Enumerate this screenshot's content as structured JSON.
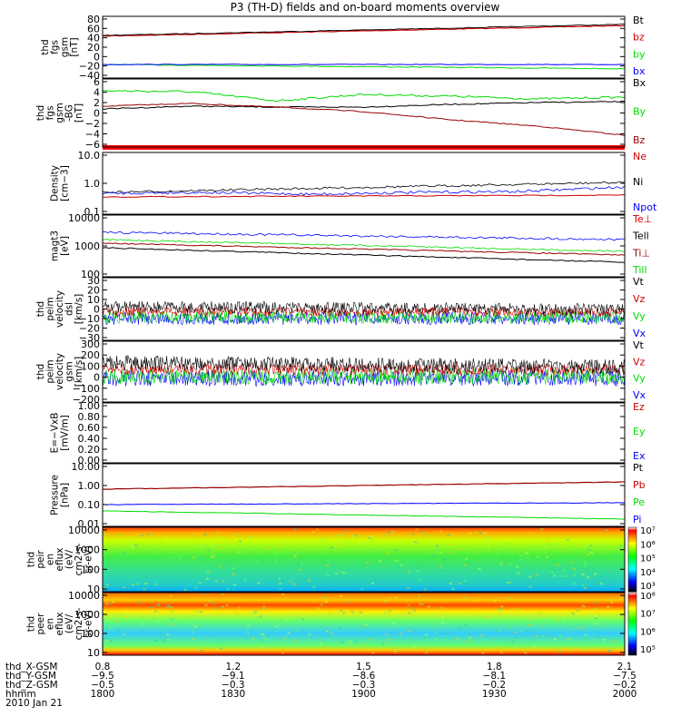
{
  "title": "P3 (TH-D) fields and on-board moments overview",
  "colors": {
    "black": "#000000",
    "red": "#cc0000",
    "green": "#00dd00",
    "blue": "#0000ff",
    "darkred": "#990000"
  },
  "panels": [
    {
      "ylabel": [
        "thd",
        "fgs",
        "gsm",
        "[nT]"
      ],
      "ticks": [
        "80",
        "60",
        "40",
        "20",
        "0",
        "−20",
        "−40"
      ],
      "legend": [
        {
          "t": "Bt",
          "c": "black"
        },
        {
          "t": "bz",
          "c": "red"
        },
        {
          "t": "by",
          "c": "green"
        },
        {
          "t": "bx",
          "c": "blue"
        }
      ]
    },
    {
      "ylabel": [
        "thd",
        "fgs",
        "gsm",
        "-BG",
        "[nT]"
      ],
      "ticks": [
        "6",
        "4",
        "2",
        "0",
        "−2",
        "−4",
        "−6"
      ],
      "legend": [
        {
          "t": "Bx",
          "c": "black"
        },
        {
          "t": "By",
          "c": "green"
        },
        {
          "t": "Bz",
          "c": "darkred"
        }
      ]
    },
    {
      "ylabel": [
        "Density",
        "[cm−3]"
      ],
      "ticks": [
        "10.0",
        "1.0",
        "0.1"
      ],
      "legend": [
        {
          "t": "Ne",
          "c": "red"
        },
        {
          "t": "Ni",
          "c": "black"
        },
        {
          "t": "Npot",
          "c": "blue"
        }
      ]
    },
    {
      "ylabel": [
        "magt3",
        "[eV]"
      ],
      "ticks": [
        "10000",
        "1000",
        "100"
      ],
      "legend": [
        {
          "t": "Te⊥",
          "c": "red"
        },
        {
          "t": "Tell",
          "c": "black"
        },
        {
          "t": "Ti⊥",
          "c": "darkred"
        },
        {
          "t": "Till",
          "c": "green"
        }
      ]
    },
    {
      "ylabel": [
        "thd",
        "peim",
        "velocity",
        "dsl",
        "[km/s]"
      ],
      "ticks": [
        "30",
        "20",
        "10",
        "0",
        "−10",
        "−20",
        "−30"
      ],
      "legend": [
        {
          "t": "Vt",
          "c": "black"
        },
        {
          "t": "Vz",
          "c": "red"
        },
        {
          "t": "Vy",
          "c": "green"
        },
        {
          "t": "Vx",
          "c": "blue"
        }
      ]
    },
    {
      "ylabel": [
        "thd",
        "peim",
        "velocity",
        "gsm",
        "[km/s]"
      ],
      "ticks": [
        "300",
        "200",
        "100",
        "0",
        "−100",
        "−200"
      ],
      "legend": [
        {
          "t": "Vt",
          "c": "black"
        },
        {
          "t": "Vz",
          "c": "red"
        },
        {
          "t": "Vy",
          "c": "green"
        },
        {
          "t": "Vx",
          "c": "blue"
        }
      ]
    },
    {
      "ylabel": [
        "E=−VxB",
        "[mV/m]"
      ],
      "ticks": [
        "1.00",
        "0.80",
        "0.60",
        "0.40",
        "0.20",
        "0.00"
      ],
      "legend": [
        {
          "t": "Ez",
          "c": "red"
        },
        {
          "t": "Ey",
          "c": "green"
        },
        {
          "t": "Ex",
          "c": "blue"
        }
      ]
    },
    {
      "ylabel": [
        "Pressure",
        "[nPa]"
      ],
      "ticks": [
        "10.00",
        "1.00",
        "0.10",
        "0.01"
      ],
      "legend": [
        {
          "t": "Pt",
          "c": "black"
        },
        {
          "t": "Pb",
          "c": "red"
        },
        {
          "t": "Pe",
          "c": "green"
        },
        {
          "t": "Pi",
          "c": "blue"
        }
      ]
    },
    {
      "ylabel": [
        "thd",
        "peir",
        "en",
        "eflux",
        "(eV/",
        "cm2-s-",
        "sr-eV)"
      ],
      "ticks": [
        "10000",
        "1000",
        "100",
        "10"
      ],
      "colorbar": [
        "10⁷",
        "10⁶",
        "10⁵",
        "10⁴",
        "10³"
      ]
    },
    {
      "ylabel": [
        "thd",
        "peer",
        "en",
        "eflux",
        "(eV/",
        "cm2-s-",
        "sr-eV)"
      ],
      "ticks": [
        "10000",
        "1000",
        "100",
        "10"
      ],
      "colorbar": [
        "10⁸",
        "10⁷",
        "10⁶",
        "10⁵"
      ]
    }
  ],
  "xaxis": {
    "rows": [
      {
        "label": "thd_X-GSM",
        "values": [
          "0.8",
          "1.2",
          "1.5",
          "1.8",
          "2.1"
        ]
      },
      {
        "label": "thd_Y-GSM",
        "values": [
          "−9.5",
          "−9.1",
          "−8.6",
          "−8.1",
          "−7.5"
        ]
      },
      {
        "label": "thd_Z-GSM",
        "values": [
          "−0.5",
          "−0.3",
          "−0.3",
          "−0.2",
          "−0.2"
        ]
      },
      {
        "label": "hhmm",
        "values": [
          "1800",
          "1830",
          "1900",
          "1930",
          "2000"
        ]
      }
    ],
    "date": "2010 Jan 21"
  },
  "chart_data": {
    "type": "line",
    "title": "P3 (TH-D) fields and on-board moments overview",
    "x_time_hhmm": [
      "1800",
      "1830",
      "1900",
      "1930",
      "2000"
    ],
    "series": [
      {
        "panel": 0,
        "name": "Bt",
        "approx_values": [
          42,
          46,
          52,
          57,
          63
        ]
      },
      {
        "panel": 0,
        "name": "bz",
        "approx_values": [
          41,
          45,
          51,
          56,
          62
        ]
      },
      {
        "panel": 0,
        "name": "by",
        "approx_values": [
          -12,
          -14,
          -17,
          -20,
          -24
        ]
      },
      {
        "panel": 0,
        "name": "bx",
        "approx_values": [
          -12,
          -12,
          -13,
          -13,
          -13
        ]
      },
      {
        "panel": 1,
        "name": "Bx",
        "approx_values": [
          0,
          0.3,
          0.5,
          1.2,
          1.5
        ]
      },
      {
        "panel": 1,
        "name": "By",
        "approx_values": [
          4,
          3.5,
          2.5,
          2.8,
          2.2
        ]
      },
      {
        "panel": 1,
        "name": "Bz",
        "approx_values": [
          1,
          0.5,
          -0.5,
          -2,
          -5
        ]
      },
      {
        "panel": 2,
        "name": "Ni",
        "approx_values": [
          0.5,
          0.7,
          1.0,
          1.5,
          2.0
        ]
      },
      {
        "panel": 2,
        "name": "Ne",
        "approx_values": [
          0.35,
          0.38,
          0.4,
          0.42,
          0.45
        ]
      },
      {
        "panel": 2,
        "name": "Npot",
        "approx_values": [
          0.5,
          0.5,
          0.5,
          0.6,
          0.8
        ]
      },
      {
        "panel": 3,
        "name": "Te⊥",
        "approx_values": [
          2500,
          2400,
          2300,
          2200,
          2100
        ]
      },
      {
        "panel": 3,
        "name": "Tell",
        "approx_values": [
          1000,
          800,
          650,
          500,
          380
        ]
      },
      {
        "panel": 3,
        "name": "Ti⊥",
        "approx_values": [
          1800,
          1400,
          1100,
          900,
          700
        ]
      },
      {
        "panel": 3,
        "name": "Till",
        "approx_values": [
          2000,
          1700,
          1400,
          1200,
          1000
        ]
      },
      {
        "panel": 7,
        "name": "Pt",
        "approx_values": [
          0.8,
          1.1,
          1.4,
          1.8,
          2.2
        ]
      },
      {
        "panel": 7,
        "name": "Pb",
        "approx_values": [
          0.7,
          1.0,
          1.3,
          1.7,
          2.1
        ]
      },
      {
        "panel": 7,
        "name": "Pe",
        "approx_values": [
          0.12,
          0.14,
          0.16,
          0.18,
          0.2
        ]
      },
      {
        "panel": 7,
        "name": "Pi",
        "approx_values": [
          0.05,
          0.045,
          0.04,
          0.035,
          0.03
        ]
      }
    ]
  }
}
